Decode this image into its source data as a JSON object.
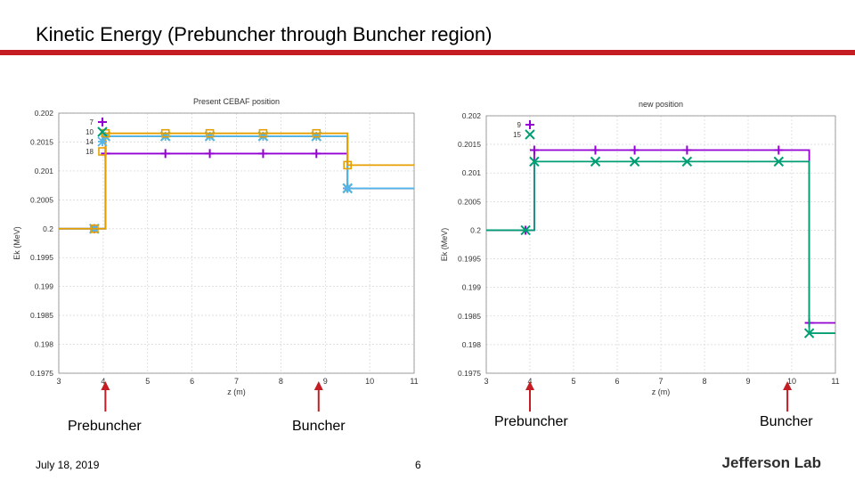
{
  "slide": {
    "title": "Kinetic Energy (Prebuncher through Buncher region)",
    "date": "July 18, 2019",
    "page_number": "6",
    "logo": "Jefferson Lab",
    "accent_color": "#c41e24"
  },
  "captions": {
    "left_prebuncher": "Prebuncher",
    "left_buncher": "Buncher",
    "right_prebuncher": "Prebuncher",
    "right_buncher": "Buncher"
  },
  "chart_data": [
    {
      "type": "line",
      "title": "Present CEBAF position",
      "xlabel": "z (m)",
      "ylabel": "Ek (MeV)",
      "xlim": [
        3,
        11
      ],
      "ylim": [
        0.1975,
        0.202
      ],
      "x_ticks": [
        "3",
        "4",
        "5",
        "6",
        "7",
        "8",
        "9",
        "10",
        "11"
      ],
      "y_ticks": [
        "0.1975",
        "0.198",
        "0.1985",
        "0.199",
        "0.1995",
        "0.2",
        "0.2005",
        "0.201",
        "0.2015",
        "0.202"
      ],
      "grid": true,
      "legend_position": "top-left",
      "series": [
        {
          "name": "7",
          "color": "#9400d3",
          "marker": "plus",
          "x": [
            3.8,
            4.05,
            5.4,
            6.4,
            7.6,
            8.8,
            9.5
          ],
          "y": [
            0.2,
            0.2013,
            0.2013,
            0.2013,
            0.2013,
            0.2013,
            0.2007
          ]
        },
        {
          "name": "10",
          "color": "#009e73",
          "marker": "cross",
          "x": [
            3.8,
            4.05,
            5.4,
            6.4,
            7.6,
            8.8,
            9.5
          ],
          "y": [
            0.2,
            0.2016,
            0.2016,
            0.2016,
            0.2016,
            0.2016,
            0.2007
          ]
        },
        {
          "name": "14",
          "color": "#56b4e9",
          "marker": "star",
          "x": [
            3.8,
            4.05,
            5.4,
            6.4,
            7.6,
            8.8,
            9.5
          ],
          "y": [
            0.2,
            0.2016,
            0.2016,
            0.2016,
            0.2016,
            0.2016,
            0.2007
          ]
        },
        {
          "name": "18",
          "color": "#e69f00",
          "marker": "square",
          "x": [
            3.8,
            4.05,
            5.4,
            6.4,
            7.6,
            8.8,
            9.5
          ],
          "y": [
            0.2,
            0.20165,
            0.20165,
            0.20165,
            0.20165,
            0.20165,
            0.2011
          ]
        }
      ]
    },
    {
      "type": "line",
      "title": "new position",
      "xlabel": "z (m)",
      "ylabel": "Ek (MeV)",
      "xlim": [
        3,
        11
      ],
      "ylim": [
        0.1975,
        0.202
      ],
      "x_ticks": [
        "3",
        "4",
        "5",
        "6",
        "7",
        "8",
        "9",
        "10",
        "11"
      ],
      "y_ticks": [
        "0.1975",
        "0.198",
        "0.1985",
        "0.199",
        "0.1995",
        "0.2",
        "0.2005",
        "0.201",
        "0.2015",
        "0.202"
      ],
      "grid": true,
      "legend_position": "top-left",
      "series": [
        {
          "name": "9",
          "color": "#9400d3",
          "marker": "plus",
          "x": [
            3.9,
            4.1,
            5.5,
            6.4,
            7.6,
            9.7,
            10.4
          ],
          "y": [
            0.2,
            0.2014,
            0.2014,
            0.2014,
            0.2014,
            0.2014,
            0.19838
          ]
        },
        {
          "name": "15",
          "color": "#009e73",
          "marker": "cross",
          "x": [
            3.9,
            4.1,
            5.5,
            6.4,
            7.6,
            9.7,
            10.4
          ],
          "y": [
            0.2,
            0.2012,
            0.2012,
            0.2012,
            0.2012,
            0.2012,
            0.1982
          ]
        }
      ]
    }
  ]
}
